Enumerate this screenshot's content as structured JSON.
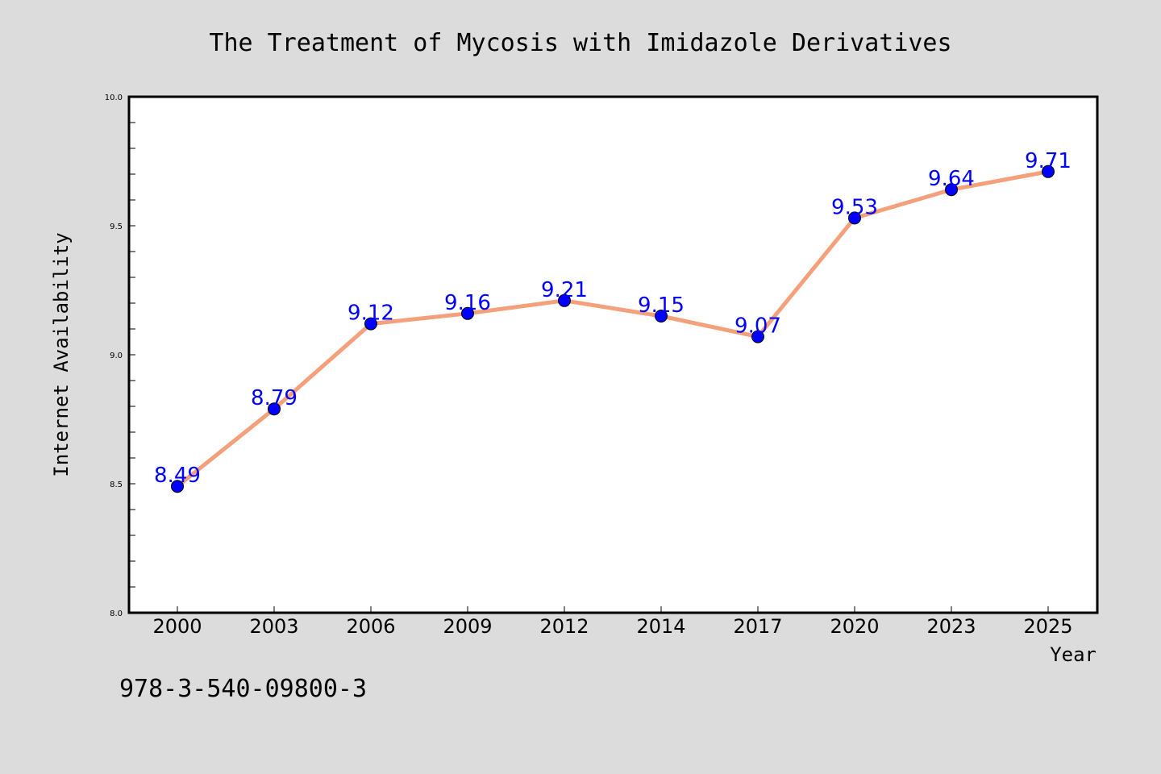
{
  "chart_data": {
    "type": "line",
    "title": "The Treatment of Mycosis with Imidazole Derivatives",
    "xlabel": "Year",
    "ylabel": "Internet Availability",
    "categories": [
      "2000",
      "2003",
      "2006",
      "2009",
      "2012",
      "2014",
      "2017",
      "2020",
      "2023",
      "2025"
    ],
    "values": [
      8.49,
      8.79,
      9.12,
      9.16,
      9.21,
      9.15,
      9.07,
      9.53,
      9.64,
      9.71
    ],
    "data_labels": [
      "8.49",
      "8.79",
      "9.12",
      "9.16",
      "9.21",
      "9.15",
      "9.07",
      "9.53",
      "9.64",
      "9.71"
    ],
    "ylim": [
      8.0,
      10.0
    ],
    "yticks": [
      "8.0",
      "8.5",
      "9.0",
      "9.5",
      "10.0"
    ],
    "grid": false,
    "legend": "none",
    "colors": {
      "line": "#f4a07a",
      "marker": "#0000ff",
      "data_label": "#0000ff",
      "background": "#dcdcdc",
      "plot_background": "#ffffff"
    }
  },
  "footer_text": "978-3-540-09800-3"
}
